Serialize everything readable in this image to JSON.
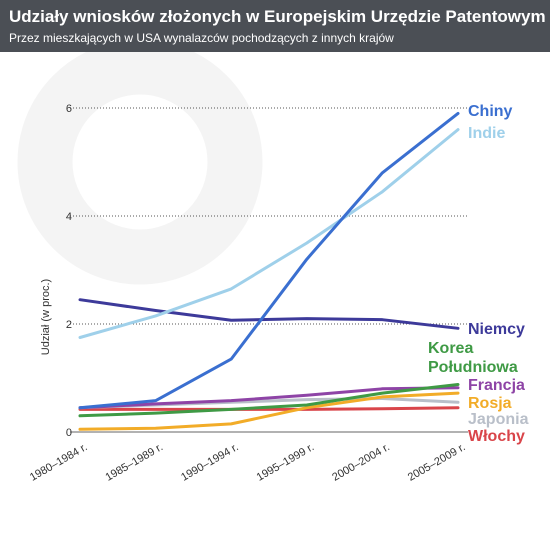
{
  "header": {
    "title": "Udziały wniosków złożonych w Europejskim Urzędzie Patentowym",
    "subtitle": "Przez mieszkających w USA wynalazców pochodzących z innych krajów"
  },
  "chart_data": {
    "type": "line",
    "title": "Udziały wniosków złożonych w Europejskim Urzędzie Patentowym",
    "subtitle": "Przez mieszkających w USA wynalazców pochodzących z innych krajów",
    "xlabel": "",
    "ylabel": "Udział (w proc.)",
    "categories": [
      "1980–1984 r.",
      "1985–1989 r.",
      "1990–1994 r.",
      "1995–1999 r.",
      "2000–2004 r.",
      "2005–2009 r."
    ],
    "ylim": [
      0,
      6.3
    ],
    "yticks": [
      0,
      2,
      4,
      6
    ],
    "grid": true,
    "legend": "inline-right",
    "series": [
      {
        "name": "Chiny",
        "color": "#3a6fd0",
        "values": [
          0.45,
          0.58,
          1.35,
          3.2,
          4.8,
          5.9
        ]
      },
      {
        "name": "Indie",
        "color": "#9fd0ea",
        "values": [
          1.75,
          2.15,
          2.65,
          3.5,
          4.45,
          5.6
        ]
      },
      {
        "name": "Niemcy",
        "color": "#3d3a9a",
        "values": [
          2.45,
          2.25,
          2.07,
          2.1,
          2.08,
          1.92
        ]
      },
      {
        "name": "Korea Południowa",
        "label_lines": [
          "Korea",
          "Południowa"
        ],
        "color": "#3f9a45",
        "values": [
          0.3,
          0.35,
          0.42,
          0.5,
          0.72,
          0.88
        ]
      },
      {
        "name": "Francja",
        "color": "#8e44a6",
        "values": [
          0.45,
          0.52,
          0.58,
          0.68,
          0.8,
          0.82
        ]
      },
      {
        "name": "Rosja",
        "color": "#f2ac28",
        "values": [
          0.05,
          0.07,
          0.15,
          0.45,
          0.65,
          0.72
        ]
      },
      {
        "name": "Japonia",
        "color": "#b9bfc9",
        "values": [
          0.45,
          0.5,
          0.55,
          0.6,
          0.62,
          0.55
        ]
      },
      {
        "name": "Włochy",
        "color": "#d9454a",
        "values": [
          0.42,
          0.42,
          0.42,
          0.42,
          0.43,
          0.45
        ]
      }
    ]
  }
}
